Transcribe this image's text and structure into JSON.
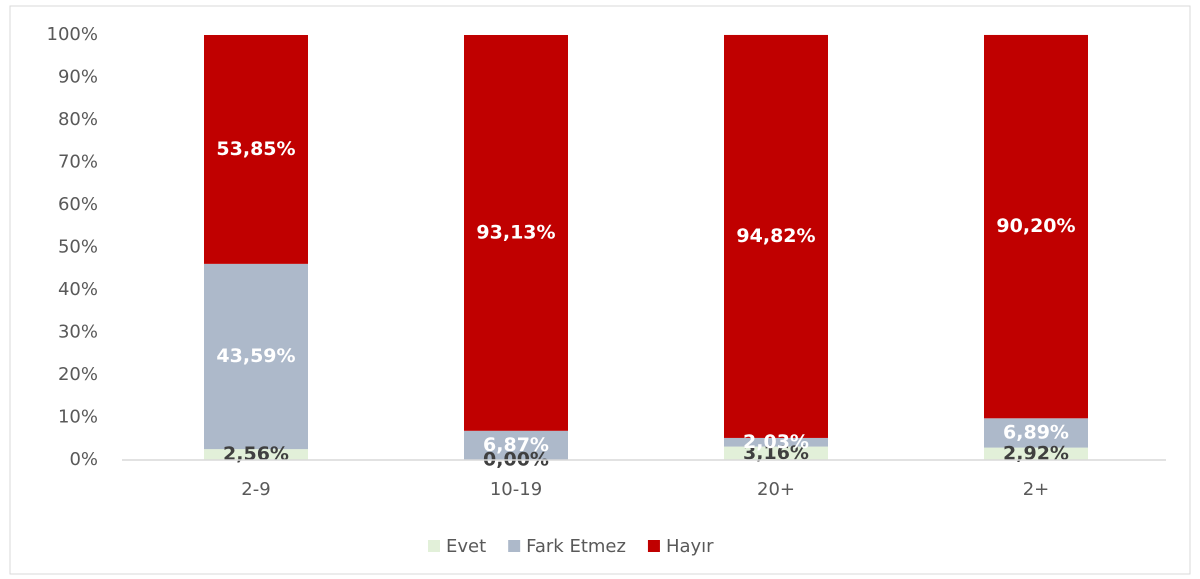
{
  "chart_data": {
    "type": "stacked_bar",
    "categories": [
      "2-9",
      "10-19",
      "20+",
      "2+"
    ],
    "series": [
      {
        "name": "Evet",
        "color": "#e2f0d9",
        "label_color": "#404040",
        "values": [
          2.56,
          0,
          3.16,
          2.92
        ],
        "value_labels": [
          "2,56%",
          "0,00%",
          "3,16%",
          "2,92%"
        ]
      },
      {
        "name": "Fark Etmez",
        "color": "#adb9ca",
        "label_color": "#ffffff",
        "values": [
          43.59,
          6.87,
          2.03,
          6.89
        ],
        "value_labels": [
          "43,59%",
          "6,87%",
          "2,03%",
          "6,89%"
        ]
      },
      {
        "name": "Hayır",
        "color": "#c00000",
        "label_color": "#ffffff",
        "values": [
          53.85,
          93.13,
          94.82,
          90.2
        ],
        "value_labels": [
          "53,85%",
          "93,13%",
          "94,82%",
          "90,20%"
        ]
      }
    ],
    "ylim": [
      0,
      100
    ],
    "yticks": [
      {
        "value": 0,
        "label": "0%"
      },
      {
        "value": 10,
        "label": "10%"
      },
      {
        "value": 20,
        "label": "20%"
      },
      {
        "value": 30,
        "label": "30%"
      },
      {
        "value": 40,
        "label": "40%"
      },
      {
        "value": 50,
        "label": "50%"
      },
      {
        "value": 60,
        "label": "60%"
      },
      {
        "value": 70,
        "label": "70%"
      },
      {
        "value": 80,
        "label": "80%"
      },
      {
        "value": 90,
        "label": "90%"
      },
      {
        "value": 100,
        "label": "100%"
      }
    ],
    "grid": false,
    "legend": "bottom"
  }
}
